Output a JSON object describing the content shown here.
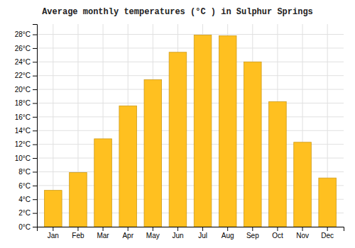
{
  "chart_data": {
    "type": "bar",
    "title": "Average monthly temperatures (°C ) in Sulphur Springs",
    "categories": [
      "Jan",
      "Feb",
      "Mar",
      "Apr",
      "May",
      "Jun",
      "Jul",
      "Aug",
      "Sep",
      "Oct",
      "Nov",
      "Dec"
    ],
    "values": [
      5.3,
      7.9,
      12.8,
      17.6,
      21.4,
      25.4,
      27.9,
      27.8,
      24.0,
      18.2,
      12.3,
      7.1
    ],
    "color": "#FFC020",
    "ylim": [
      0,
      29.5
    ],
    "yticks": [
      {
        "value": 0,
        "label": "0°C"
      },
      {
        "value": 2,
        "label": "2°C"
      },
      {
        "value": 4,
        "label": "4°C"
      },
      {
        "value": 6,
        "label": "6°C"
      },
      {
        "value": 8,
        "label": "8°C"
      },
      {
        "value": 10,
        "label": "10°C"
      },
      {
        "value": 12,
        "label": "12°C"
      },
      {
        "value": 14,
        "label": "14°C"
      },
      {
        "value": 16,
        "label": "16°C"
      },
      {
        "value": 18,
        "label": "18°C"
      },
      {
        "value": 20,
        "label": "20°C"
      },
      {
        "value": 22,
        "label": "22°C"
      },
      {
        "value": 24,
        "label": "24°C"
      },
      {
        "value": 26,
        "label": "26°C"
      },
      {
        "value": 28,
        "label": "28°C"
      }
    ],
    "grid": true
  }
}
